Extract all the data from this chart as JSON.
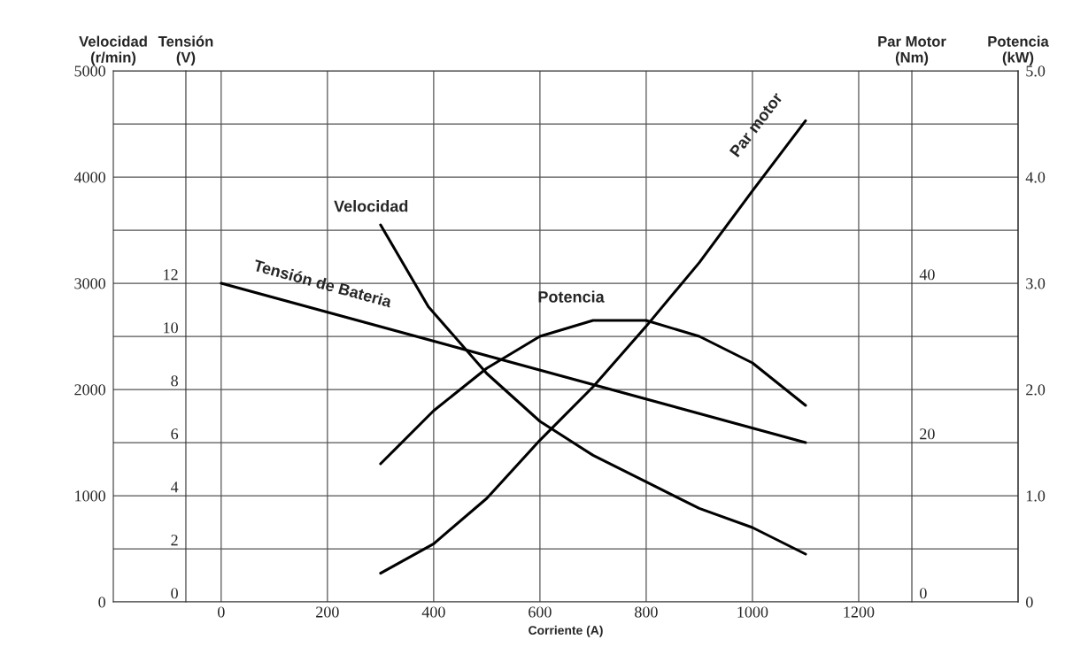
{
  "chart_data": [
    {
      "type": "line",
      "xlabel": "Corriente (A)",
      "ylabel": "Velocidad\n(r/min)",
      "y2label": "Potencia\n(kW)",
      "y3label": "Par Motor\n(Nm)",
      "xlim": [
        -203,
        1500
      ],
      "xticks": [
        0,
        200,
        400,
        600,
        800,
        1000,
        1200
      ],
      "ylim": [
        0,
        5000
      ],
      "yticks": [
        0,
        {
          "value": 500,
          "label": null
        },
        1000,
        {
          "value": 1500,
          "label": null
        },
        2000,
        {
          "value": 2500,
          "label": null
        },
        3000,
        {
          "value": 3500,
          "label": null
        },
        4000,
        {
          "value": 4500,
          "label": null
        },
        5000
      ],
      "y2lim": [
        0,
        5
      ],
      "y2ticks": [
        {
          "value": 0,
          "label": "0"
        },
        {
          "value": 1,
          "label": "1.0"
        },
        {
          "value": 2,
          "label": "2.0"
        },
        {
          "value": 3,
          "label": "3.0"
        },
        {
          "value": 4,
          "label": "4.0"
        },
        {
          "value": 5,
          "label": "5.0"
        }
      ],
      "y3lim": [
        0,
        66.67
      ],
      "y3ticks": [
        0,
        20,
        40
      ],
      "grid": true,
      "legend": false,
      "marker": "none",
      "line_style": "solid",
      "series": [
        {
          "name": "Velocidad",
          "color": "#000000",
          "x": [
            300,
            390,
            500,
            600,
            700,
            800,
            900,
            1000,
            1100
          ],
          "values": [
            3550,
            2780,
            2150,
            1700,
            1380,
            1130,
            880,
            700,
            450
          ]
        },
        {
          "name": "Par motor",
          "color": "#000000",
          "axis": "y3",
          "x": [
            300,
            400,
            500,
            600,
            700,
            800,
            900,
            1000,
            1100
          ],
          "values": [
            3.6,
            7.3,
            13,
            20.3,
            27,
            34.6,
            42.6,
            51.6,
            60.4
          ]
        },
        {
          "name": "Potencia",
          "color": "#000000",
          "axis": "y2",
          "x": [
            300,
            400,
            500,
            600,
            700,
            800,
            900,
            1000,
            1100
          ],
          "values": [
            1.3,
            1.8,
            2.2,
            2.5,
            2.65,
            2.65,
            2.5,
            2.25,
            1.85
          ]
        }
      ]
    },
    {
      "type": "line",
      "ylabel": "Tensión\n(V)",
      "xlim": [
        -203,
        1500
      ],
      "ylim": [
        0,
        20
      ],
      "yticks": [
        0,
        2,
        4,
        6,
        8,
        10,
        12
      ],
      "tick_labels": "y",
      "series": [
        {
          "name": "Tensión de Bateria",
          "color": "#000000",
          "x": [
            0,
            1100
          ],
          "values": [
            12,
            6
          ]
        }
      ]
    }
  ]
}
